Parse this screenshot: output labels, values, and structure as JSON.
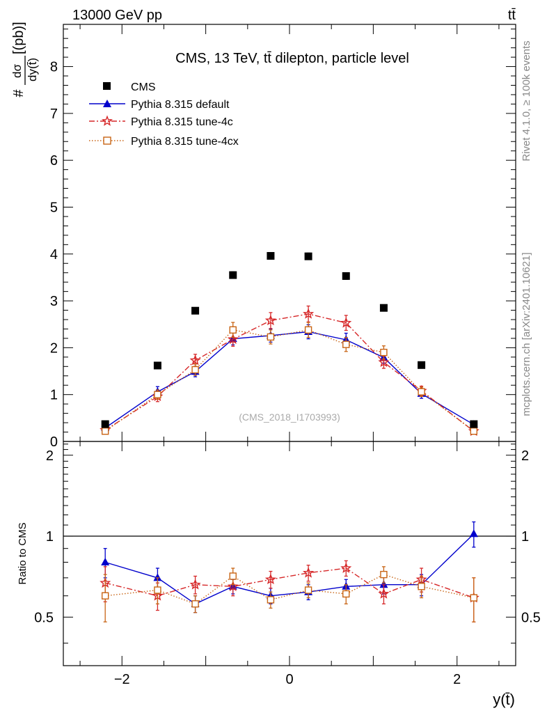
{
  "header": {
    "energy_label": "13000 GeV pp",
    "process_label": "tt̄",
    "main_title": "CMS, 13 TeV, tt̄ dilepton, particle level",
    "watermark": "(CMS_2018_I1703993)",
    "side_rivet": "Rivet 4.1.0, ≥ 100k events",
    "side_mcplots": "mcplots.cern.ch [arXiv:2401.10621]"
  },
  "chart_data": [
    {
      "type": "scatter",
      "panel": "main",
      "title": "CMS, 13 TeV, tt̄ dilepton, particle level",
      "xlabel": "y(t̄)",
      "ylabel_num": "dσ",
      "ylabel_den": "dy(t̄)",
      "ylabel_prefix": "#",
      "ylabel_unit": "[(pb)]",
      "xlim": [
        -2.7,
        2.7
      ],
      "ylim": [
        0,
        8.9
      ],
      "yticks": [
        0,
        1,
        2,
        3,
        4,
        5,
        6,
        7,
        8
      ],
      "ytick_labels": [
        "0",
        "1",
        "2",
        "3",
        "4",
        "5",
        "6",
        "7",
        "8"
      ],
      "legend_position": "top-left",
      "x": [
        -2.2,
        -1.575,
        -1.125,
        -0.675,
        -0.225,
        0.225,
        0.675,
        1.125,
        1.575,
        2.2
      ],
      "series": [
        {
          "name": "CMS",
          "color": "#000000",
          "style": "marker-square",
          "values": [
            0.37,
            1.62,
            2.79,
            3.55,
            3.96,
            3.95,
            3.53,
            2.85,
            1.63,
            0.37
          ],
          "errors": [
            0.02,
            0.05,
            0.06,
            0.07,
            0.07,
            0.07,
            0.07,
            0.06,
            0.05,
            0.02
          ]
        },
        {
          "name": "Pythia 8.315 default",
          "color": "#0000cc",
          "style": "line-triangle",
          "values": [
            0.29,
            1.06,
            1.49,
            2.19,
            2.26,
            2.34,
            2.17,
            1.79,
            1.02,
            0.36
          ],
          "errors": [
            0.04,
            0.11,
            0.11,
            0.13,
            0.14,
            0.15,
            0.14,
            0.12,
            0.1,
            0.04
          ]
        },
        {
          "name": "Pythia 8.315 tune-4c",
          "color": "#d62728",
          "style": "dashdot-star",
          "values": [
            0.24,
            0.96,
            1.73,
            2.18,
            2.58,
            2.72,
            2.53,
            1.69,
            1.08,
            0.22
          ],
          "errors": [
            0.04,
            0.11,
            0.13,
            0.15,
            0.17,
            0.17,
            0.16,
            0.13,
            0.1,
            0.04
          ]
        },
        {
          "name": "Pythia 8.315 tune-4cx",
          "color": "#c86414",
          "style": "dotted-opensquare",
          "values": [
            0.22,
            1.0,
            1.53,
            2.38,
            2.23,
            2.38,
            2.07,
            1.9,
            1.06,
            0.22
          ],
          "errors": [
            0.04,
            0.1,
            0.12,
            0.16,
            0.15,
            0.16,
            0.15,
            0.14,
            0.1,
            0.04
          ]
        }
      ]
    },
    {
      "type": "scatter",
      "panel": "ratio",
      "ylabel": "Ratio to CMS",
      "xlabel": "y(t̄)",
      "xlim": [
        -2.7,
        2.7
      ],
      "ylim": [
        0.33,
        2.25
      ],
      "yscale": "log",
      "yticks": [
        0.5,
        1,
        2
      ],
      "ytick_labels": [
        "0.5",
        "1",
        "2"
      ],
      "xticks": [
        -2,
        0,
        2
      ],
      "xtick_labels": [
        "−2",
        "0",
        "2"
      ],
      "reference_line": 1,
      "x": [
        -2.2,
        -1.575,
        -1.125,
        -0.675,
        -0.225,
        0.225,
        0.675,
        1.125,
        1.575,
        2.2
      ],
      "series": [
        {
          "name": "Pythia 8.315 default",
          "color": "#0000cc",
          "style": "line-triangle",
          "values": [
            0.8,
            0.7,
            0.56,
            0.65,
            0.6,
            0.62,
            0.65,
            0.66,
            0.66,
            1.02
          ],
          "errors": [
            0.1,
            0.06,
            0.04,
            0.04,
            0.04,
            0.04,
            0.04,
            0.05,
            0.06,
            0.11
          ]
        },
        {
          "name": "Pythia 8.315 tune-4c",
          "color": "#d62728",
          "style": "dashdot-star",
          "values": [
            0.67,
            0.6,
            0.66,
            0.65,
            0.69,
            0.73,
            0.76,
            0.61,
            0.69,
            0.59
          ],
          "errors": [
            0.1,
            0.07,
            0.05,
            0.05,
            0.05,
            0.05,
            0.05,
            0.05,
            0.07,
            0.11
          ]
        },
        {
          "name": "Pythia 8.315 tune-4cx",
          "color": "#c86414",
          "style": "dotted-opensquare",
          "values": [
            0.6,
            0.63,
            0.56,
            0.71,
            0.58,
            0.63,
            0.61,
            0.72,
            0.65,
            0.59
          ],
          "errors": [
            0.12,
            0.07,
            0.04,
            0.05,
            0.04,
            0.04,
            0.05,
            0.05,
            0.06,
            0.11
          ]
        }
      ]
    }
  ]
}
